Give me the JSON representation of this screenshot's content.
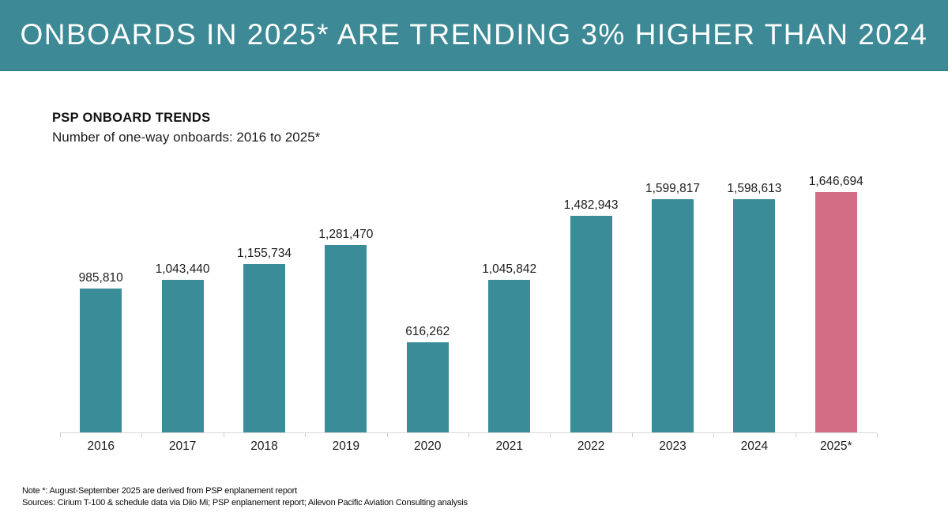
{
  "header": {
    "title": "ONBOARDS IN 2025* ARE TRENDING 3% HIGHER THAN 2024"
  },
  "chart": {
    "title": "PSP ONBOARD TRENDS",
    "subtitle": "Number of one-way onboards: 2016 to 2025*"
  },
  "chart_data": {
    "type": "bar",
    "title": "PSP ONBOARD TRENDS",
    "subtitle": "Number of one-way onboards: 2016 to 2025*",
    "categories": [
      "2016",
      "2017",
      "2018",
      "2019",
      "2020",
      "2021",
      "2022",
      "2023",
      "2024",
      "2025*"
    ],
    "values": [
      985810,
      1043440,
      1155734,
      1281470,
      616262,
      1045842,
      1482943,
      1599817,
      1598613,
      1646694
    ],
    "value_labels": [
      "985,810",
      "1,043,440",
      "1,155,734",
      "1,281,470",
      "616,262",
      "1,045,842",
      "1,482,943",
      "1,599,817",
      "1,598,613",
      "1,646,694"
    ],
    "xlabel": "",
    "ylabel": "",
    "ylim": [
      0,
      1646694
    ],
    "grid": false,
    "legend": false,
    "bar_color": "#3A8C98",
    "highlight_color": "#D16C84",
    "highlight_index": 9
  },
  "footnotes": {
    "note": "Note *:  August-September 2025 are derived from PSP enplanement report",
    "sources": "Sources: Cirium T-100 & schedule data via Diio Mi; PSP enplanement report; Ailevon Pacific Aviation Consulting analysis"
  },
  "colors": {
    "banner_bg": "#3D8996",
    "bar": "#3A8C98",
    "highlight": "#D16C84",
    "axis": "#D9D9D9"
  }
}
